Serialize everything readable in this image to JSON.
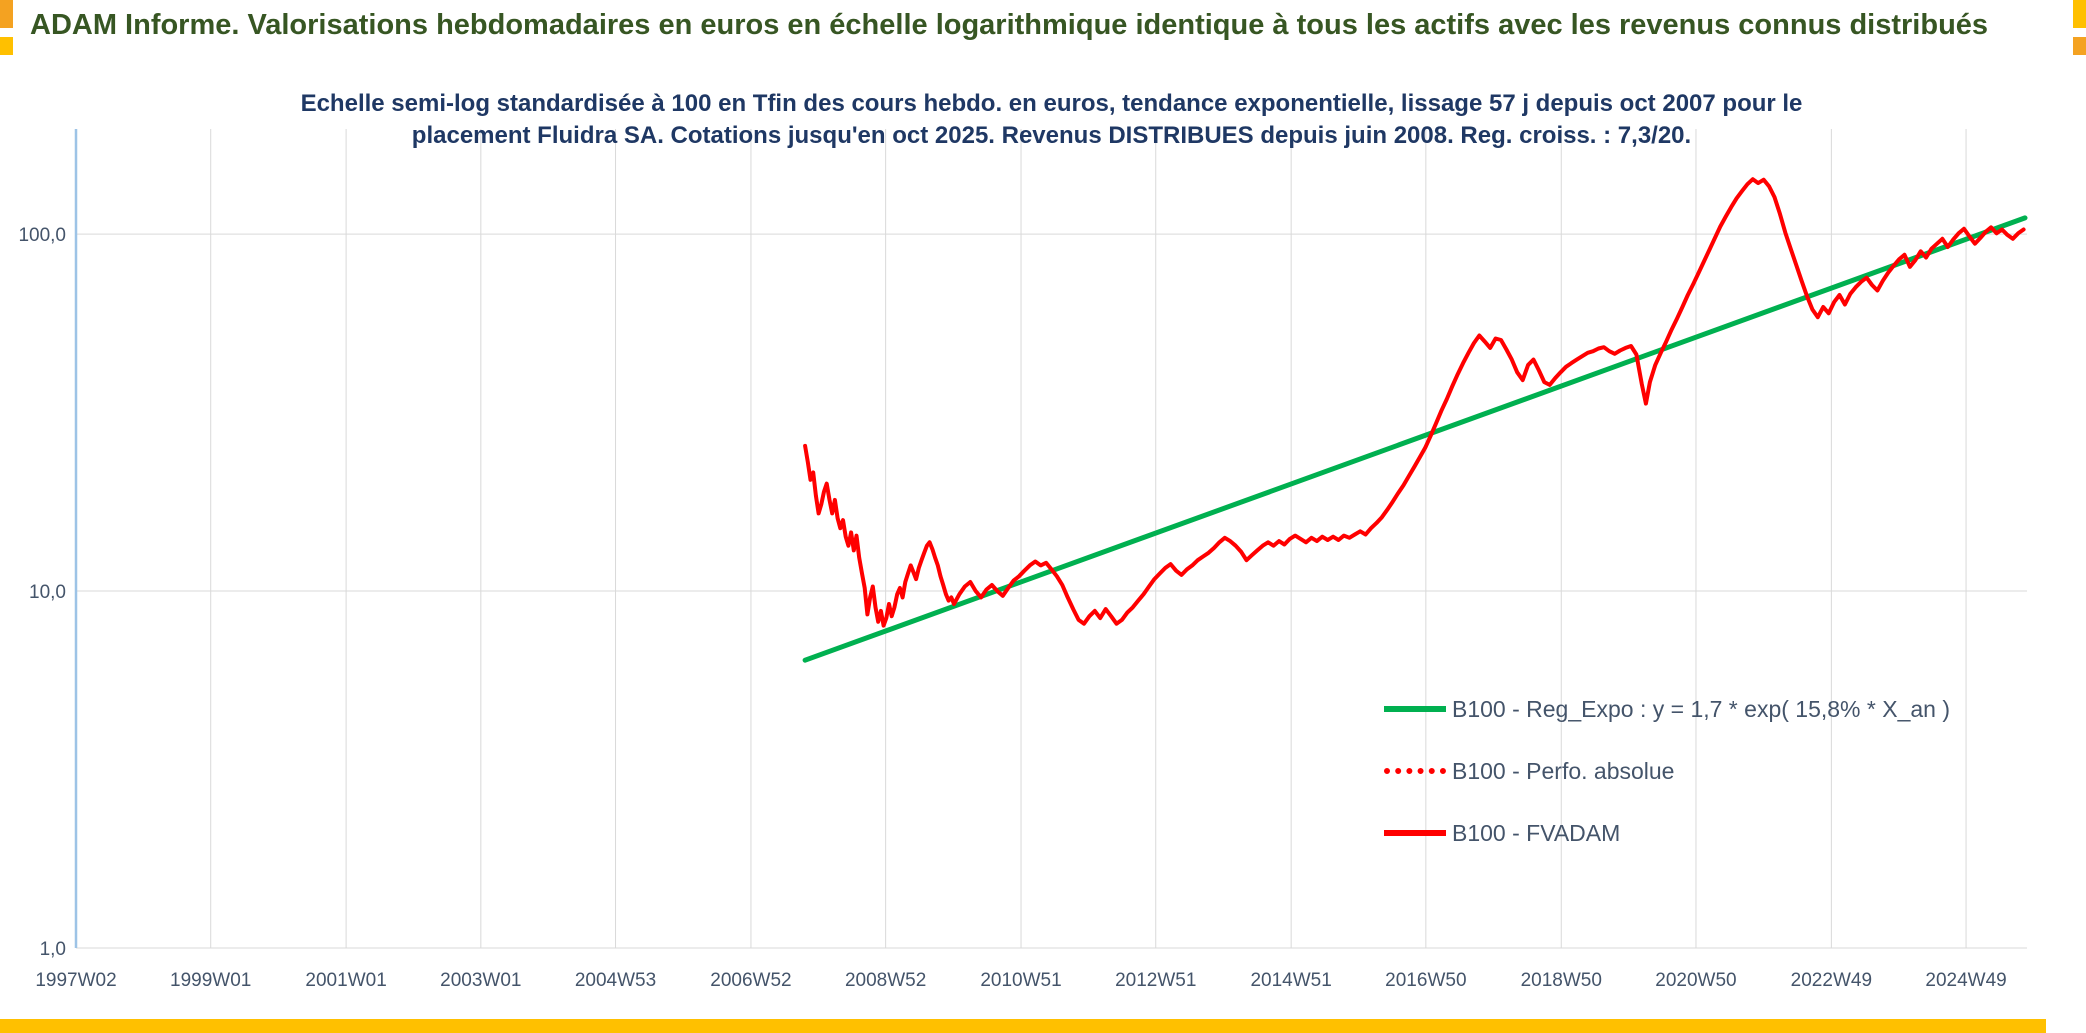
{
  "header": {
    "title": "ADAM Informe. Valorisations hebdomadaires en euros en échelle logarithmique identique à tous les actifs avec les revenus connus distribués"
  },
  "chart_title": {
    "line1": "Echelle semi-log standardisée à 100 en Tfin des cours hebdo. en euros, tendance exponentielle, lissage 57 j depuis oct 2007 pour le",
    "line2": "placement Fluidra SA. Cotations jusqu'en oct 2025. Revenus DISTRIBUES depuis juin 2008. Reg. croiss. : 7,3/20."
  },
  "legend": {
    "items": [
      {
        "label": "B100 - Reg_Expo : y = 1,7 * exp( 15,8% * X_an )",
        "color": "#00b050",
        "style": "solid"
      },
      {
        "label": "B100 - Perfo. absolue",
        "color": "#ff0000",
        "style": "dotted"
      },
      {
        "label": "B100 - FVADAM",
        "color": "#ff0000",
        "style": "solid"
      }
    ]
  },
  "colors": {
    "green": "#00b050",
    "red": "#ff0000",
    "header_text": "#375623",
    "title_text": "#1f3864",
    "axis_text": "#44546a",
    "axis_line": "#9dc3e6",
    "grid": "#d9d9d9",
    "gold": "#ffc000",
    "orange": "#f4a221"
  },
  "chart_data": {
    "type": "line",
    "x_scale": "linear_years",
    "y_scale": "log10",
    "xlim": [
      1997.03,
      2025.85
    ],
    "ylim": [
      1,
      197
    ],
    "grid": "major",
    "legend_position": "inside-lower-right",
    "x_tick_labels": [
      "1997W02",
      "1999W01",
      "2001W01",
      "2003W01",
      "2004W53",
      "2006W52",
      "2008W52",
      "2010W51",
      "2012W51",
      "2014W51",
      "2016W50",
      "2018W50",
      "2020W50",
      "2022W49",
      "2024W49"
    ],
    "x_tick_years": [
      1997.03,
      1999.02,
      2001.02,
      2003.01,
      2005.0,
      2007.0,
      2008.99,
      2010.99,
      2012.98,
      2014.98,
      2016.97,
      2018.97,
      2020.96,
      2022.96,
      2024.95
    ],
    "y_tick_labels": [
      "100,0",
      "10,0",
      "1,0"
    ],
    "y_tick_values": [
      100,
      10,
      1
    ],
    "series": [
      {
        "name": "B100 - Reg_Expo : y = 1,7 * exp( 15,8% * X_an )",
        "color": "#00b050",
        "style": "solid",
        "points": [
          [
            2007.8,
            6.4
          ],
          [
            2025.82,
            111.0
          ]
        ]
      },
      {
        "name": "B100 - Perfo. absolue",
        "color": "#ff0000",
        "style": "dotted",
        "note": "coincides with B100 - FVADAM and is hidden beneath it",
        "points": []
      },
      {
        "name": "B100 - FVADAM",
        "color": "#ff0000",
        "style": "solid",
        "points": [
          [
            2007.8,
            25.5
          ],
          [
            2007.84,
            23.0
          ],
          [
            2007.88,
            20.5
          ],
          [
            2007.92,
            21.5
          ],
          [
            2007.96,
            18.5
          ],
          [
            2008.0,
            16.5
          ],
          [
            2008.04,
            17.5
          ],
          [
            2008.08,
            19.0
          ],
          [
            2008.12,
            20.0
          ],
          [
            2008.16,
            18.0
          ],
          [
            2008.2,
            16.5
          ],
          [
            2008.24,
            18.0
          ],
          [
            2008.28,
            16.0
          ],
          [
            2008.32,
            15.0
          ],
          [
            2008.36,
            15.8
          ],
          [
            2008.4,
            14.2
          ],
          [
            2008.44,
            13.4
          ],
          [
            2008.48,
            14.6
          ],
          [
            2008.52,
            13.0
          ],
          [
            2008.56,
            14.3
          ],
          [
            2008.6,
            12.4
          ],
          [
            2008.64,
            11.2
          ],
          [
            2008.68,
            10.2
          ],
          [
            2008.72,
            8.6
          ],
          [
            2008.76,
            9.6
          ],
          [
            2008.8,
            10.3
          ],
          [
            2008.84,
            9.0
          ],
          [
            2008.88,
            8.2
          ],
          [
            2008.92,
            8.8
          ],
          [
            2008.96,
            8.0
          ],
          [
            2009.0,
            8.4
          ],
          [
            2009.04,
            9.2
          ],
          [
            2009.08,
            8.5
          ],
          [
            2009.12,
            9.0
          ],
          [
            2009.16,
            9.8
          ],
          [
            2009.2,
            10.2
          ],
          [
            2009.24,
            9.6
          ],
          [
            2009.28,
            10.6
          ],
          [
            2009.32,
            11.2
          ],
          [
            2009.36,
            11.8
          ],
          [
            2009.4,
            11.3
          ],
          [
            2009.44,
            10.8
          ],
          [
            2009.48,
            11.6
          ],
          [
            2009.52,
            12.2
          ],
          [
            2009.56,
            12.8
          ],
          [
            2009.6,
            13.4
          ],
          [
            2009.64,
            13.7
          ],
          [
            2009.68,
            13.1
          ],
          [
            2009.72,
            12.4
          ],
          [
            2009.76,
            11.8
          ],
          [
            2009.8,
            11.0
          ],
          [
            2009.84,
            10.4
          ],
          [
            2009.88,
            9.8
          ],
          [
            2009.92,
            9.4
          ],
          [
            2009.96,
            9.6
          ],
          [
            2010.0,
            9.2
          ],
          [
            2010.08,
            9.8
          ],
          [
            2010.16,
            10.3
          ],
          [
            2010.24,
            10.6
          ],
          [
            2010.32,
            10.0
          ],
          [
            2010.4,
            9.6
          ],
          [
            2010.48,
            10.1
          ],
          [
            2010.56,
            10.4
          ],
          [
            2010.64,
            10.0
          ],
          [
            2010.72,
            9.7
          ],
          [
            2010.8,
            10.2
          ],
          [
            2010.88,
            10.7
          ],
          [
            2010.96,
            11.0
          ],
          [
            2011.04,
            11.4
          ],
          [
            2011.12,
            11.8
          ],
          [
            2011.2,
            12.1
          ],
          [
            2011.28,
            11.8
          ],
          [
            2011.36,
            12.0
          ],
          [
            2011.44,
            11.5
          ],
          [
            2011.52,
            11.0
          ],
          [
            2011.6,
            10.4
          ],
          [
            2011.68,
            9.6
          ],
          [
            2011.76,
            8.9
          ],
          [
            2011.84,
            8.3
          ],
          [
            2011.92,
            8.1
          ],
          [
            2012.0,
            8.5
          ],
          [
            2012.08,
            8.8
          ],
          [
            2012.16,
            8.4
          ],
          [
            2012.24,
            8.9
          ],
          [
            2012.32,
            8.5
          ],
          [
            2012.4,
            8.1
          ],
          [
            2012.48,
            8.3
          ],
          [
            2012.56,
            8.7
          ],
          [
            2012.64,
            9.0
          ],
          [
            2012.72,
            9.4
          ],
          [
            2012.8,
            9.8
          ],
          [
            2012.88,
            10.3
          ],
          [
            2012.96,
            10.8
          ],
          [
            2013.04,
            11.2
          ],
          [
            2013.12,
            11.6
          ],
          [
            2013.2,
            11.9
          ],
          [
            2013.28,
            11.4
          ],
          [
            2013.36,
            11.1
          ],
          [
            2013.44,
            11.5
          ],
          [
            2013.52,
            11.8
          ],
          [
            2013.6,
            12.2
          ],
          [
            2013.68,
            12.5
          ],
          [
            2013.76,
            12.8
          ],
          [
            2013.84,
            13.2
          ],
          [
            2013.92,
            13.7
          ],
          [
            2014.0,
            14.1
          ],
          [
            2014.08,
            13.8
          ],
          [
            2014.16,
            13.4
          ],
          [
            2014.24,
            12.9
          ],
          [
            2014.32,
            12.2
          ],
          [
            2014.4,
            12.6
          ],
          [
            2014.48,
            13.0
          ],
          [
            2014.56,
            13.4
          ],
          [
            2014.64,
            13.7
          ],
          [
            2014.72,
            13.4
          ],
          [
            2014.8,
            13.8
          ],
          [
            2014.88,
            13.5
          ],
          [
            2014.96,
            14.0
          ],
          [
            2015.04,
            14.3
          ],
          [
            2015.12,
            14.0
          ],
          [
            2015.2,
            13.7
          ],
          [
            2015.28,
            14.1
          ],
          [
            2015.36,
            13.8
          ],
          [
            2015.44,
            14.2
          ],
          [
            2015.52,
            13.9
          ],
          [
            2015.6,
            14.2
          ],
          [
            2015.68,
            13.9
          ],
          [
            2015.76,
            14.3
          ],
          [
            2015.84,
            14.1
          ],
          [
            2015.92,
            14.4
          ],
          [
            2016.0,
            14.7
          ],
          [
            2016.08,
            14.4
          ],
          [
            2016.16,
            15.0
          ],
          [
            2016.24,
            15.5
          ],
          [
            2016.32,
            16.1
          ],
          [
            2016.4,
            16.9
          ],
          [
            2016.48,
            17.8
          ],
          [
            2016.56,
            18.8
          ],
          [
            2016.64,
            19.8
          ],
          [
            2016.72,
            21.0
          ],
          [
            2016.8,
            22.3
          ],
          [
            2016.88,
            23.7
          ],
          [
            2016.96,
            25.2
          ],
          [
            2017.04,
            27.2
          ],
          [
            2017.12,
            29.5
          ],
          [
            2017.2,
            32.0
          ],
          [
            2017.28,
            34.5
          ],
          [
            2017.36,
            37.5
          ],
          [
            2017.44,
            40.5
          ],
          [
            2017.52,
            43.5
          ],
          [
            2017.6,
            46.5
          ],
          [
            2017.68,
            49.5
          ],
          [
            2017.76,
            52.0
          ],
          [
            2017.84,
            50.0
          ],
          [
            2017.92,
            48.0
          ],
          [
            2018.0,
            51.0
          ],
          [
            2018.08,
            50.5
          ],
          [
            2018.16,
            47.5
          ],
          [
            2018.24,
            44.5
          ],
          [
            2018.32,
            41.0
          ],
          [
            2018.4,
            39.0
          ],
          [
            2018.48,
            43.0
          ],
          [
            2018.56,
            44.5
          ],
          [
            2018.64,
            41.5
          ],
          [
            2018.72,
            38.5
          ],
          [
            2018.8,
            37.8
          ],
          [
            2018.88,
            39.5
          ],
          [
            2018.96,
            41.0
          ],
          [
            2019.04,
            42.5
          ],
          [
            2019.12,
            43.5
          ],
          [
            2019.2,
            44.5
          ],
          [
            2019.28,
            45.5
          ],
          [
            2019.36,
            46.5
          ],
          [
            2019.44,
            47.0
          ],
          [
            2019.52,
            47.8
          ],
          [
            2019.6,
            48.2
          ],
          [
            2019.68,
            47.0
          ],
          [
            2019.76,
            46.2
          ],
          [
            2019.84,
            47.2
          ],
          [
            2019.92,
            48.0
          ],
          [
            2020.0,
            48.6
          ],
          [
            2020.08,
            46.0
          ],
          [
            2020.16,
            38.0
          ],
          [
            2020.22,
            33.5
          ],
          [
            2020.28,
            38.5
          ],
          [
            2020.36,
            43.0
          ],
          [
            2020.44,
            46.5
          ],
          [
            2020.52,
            50.0
          ],
          [
            2020.6,
            54.0
          ],
          [
            2020.68,
            58.0
          ],
          [
            2020.76,
            62.5
          ],
          [
            2020.84,
            67.5
          ],
          [
            2020.92,
            72.5
          ],
          [
            2021.0,
            78.0
          ],
          [
            2021.08,
            84.0
          ],
          [
            2021.16,
            90.5
          ],
          [
            2021.24,
            97.5
          ],
          [
            2021.32,
            105.0
          ],
          [
            2021.4,
            112.0
          ],
          [
            2021.48,
            119.0
          ],
          [
            2021.56,
            126.0
          ],
          [
            2021.64,
            132.0
          ],
          [
            2021.72,
            138.0
          ],
          [
            2021.8,
            142.5
          ],
          [
            2021.88,
            139.0
          ],
          [
            2021.96,
            142.0
          ],
          [
            2022.04,
            136.0
          ],
          [
            2022.12,
            127.0
          ],
          [
            2022.2,
            114.0
          ],
          [
            2022.28,
            101.0
          ],
          [
            2022.36,
            91.0
          ],
          [
            2022.44,
            82.0
          ],
          [
            2022.52,
            74.0
          ],
          [
            2022.6,
            67.0
          ],
          [
            2022.68,
            61.5
          ],
          [
            2022.76,
            58.5
          ],
          [
            2022.84,
            62.5
          ],
          [
            2022.92,
            60.0
          ],
          [
            2023.0,
            64.5
          ],
          [
            2023.08,
            67.5
          ],
          [
            2023.16,
            63.5
          ],
          [
            2023.24,
            68.0
          ],
          [
            2023.32,
            71.0
          ],
          [
            2023.4,
            73.5
          ],
          [
            2023.48,
            75.5
          ],
          [
            2023.56,
            72.0
          ],
          [
            2023.64,
            69.5
          ],
          [
            2023.72,
            74.0
          ],
          [
            2023.8,
            78.0
          ],
          [
            2023.88,
            81.5
          ],
          [
            2023.96,
            85.0
          ],
          [
            2024.04,
            87.5
          ],
          [
            2024.12,
            81.0
          ],
          [
            2024.2,
            84.5
          ],
          [
            2024.28,
            89.5
          ],
          [
            2024.36,
            86.0
          ],
          [
            2024.44,
            91.0
          ],
          [
            2024.52,
            94.0
          ],
          [
            2024.6,
            97.0
          ],
          [
            2024.68,
            92.0
          ],
          [
            2024.76,
            96.5
          ],
          [
            2024.84,
            100.5
          ],
          [
            2024.92,
            103.5
          ],
          [
            2025.0,
            98.5
          ],
          [
            2025.08,
            94.0
          ],
          [
            2025.16,
            97.5
          ],
          [
            2025.24,
            101.5
          ],
          [
            2025.32,
            104.5
          ],
          [
            2025.4,
            100.5
          ],
          [
            2025.48,
            103.0
          ],
          [
            2025.56,
            99.5
          ],
          [
            2025.64,
            97.0
          ],
          [
            2025.72,
            100.5
          ],
          [
            2025.8,
            103.0
          ]
        ]
      }
    ]
  }
}
